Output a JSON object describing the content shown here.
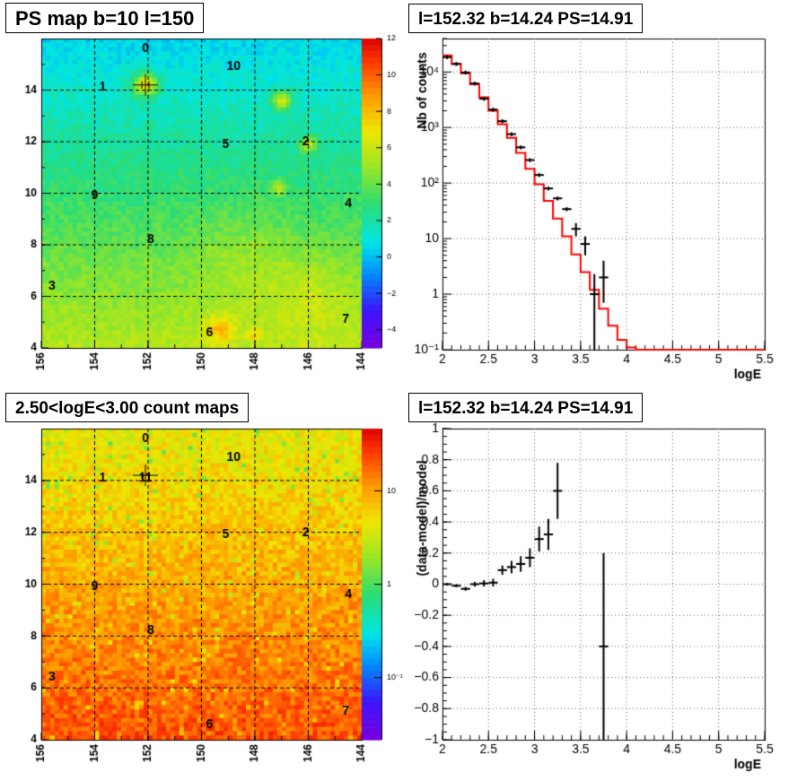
{
  "panels": {
    "ps_map": {
      "title": "PS map b=10 l=150",
      "colorbar_ticks": [
        "12",
        "10",
        "8",
        "6",
        "4",
        "2",
        "0",
        "−2",
        "−4"
      ],
      "colorbar_range": [
        -5,
        12
      ]
    },
    "count_map": {
      "title": "2.50<logE<3.00 count maps",
      "colorbar_ticks": [
        "10",
        "1",
        "10⁻¹"
      ]
    },
    "spectrum": {
      "title": "l=152.32 b=14.24 PS=14.91"
    },
    "residual": {
      "title": "l=152.32 b=14.24 PS=14.91"
    }
  },
  "map_axes": {
    "x_ticks": [
      "156",
      "154",
      "152",
      "150",
      "148",
      "146",
      "144"
    ],
    "x_range": [
      156,
      144
    ],
    "y_ticks": [
      "4",
      "6",
      "8",
      "10",
      "12",
      "14"
    ],
    "y_range": [
      4,
      16
    ]
  },
  "source_labels": [
    {
      "id": "0",
      "l": 152.1,
      "b": 15.6
    },
    {
      "id": "10",
      "l": 148.8,
      "b": 14.9
    },
    {
      "id": "1",
      "l": 153.7,
      "b": 14.1
    },
    {
      "id": "11",
      "l": 152.1,
      "b": 14.1
    },
    {
      "id": "5",
      "l": 149.1,
      "b": 11.9
    },
    {
      "id": "2",
      "l": 146.1,
      "b": 12.0
    },
    {
      "id": "9",
      "l": 154.0,
      "b": 9.9
    },
    {
      "id": "4",
      "l": 144.5,
      "b": 9.6
    },
    {
      "id": "8",
      "l": 151.9,
      "b": 8.2
    },
    {
      "id": "3",
      "l": 155.6,
      "b": 6.4
    },
    {
      "id": "7",
      "l": 144.6,
      "b": 5.1
    },
    {
      "id": "6",
      "l": 149.7,
      "b": 4.6
    }
  ],
  "map_marker": {
    "l": 152.1,
    "b": 14.2
  },
  "chart_data": [
    {
      "type": "line",
      "panel": "spectrum",
      "xlabel": "logE",
      "ylabel": "Nb of counts",
      "xlim": [
        2,
        5.5
      ],
      "ylim": [
        0.1,
        40000
      ],
      "log_y": true,
      "x_ticks": [
        "2",
        "2.5",
        "3",
        "3.5",
        "4",
        "4.5",
        "5",
        "5.5"
      ],
      "y_ticks": [
        {
          "value": 0.1,
          "label": "10⁻¹"
        },
        {
          "value": 1,
          "label": "1"
        },
        {
          "value": 10,
          "label": "10"
        },
        {
          "value": 100,
          "label": "10²"
        },
        {
          "value": 1000,
          "label": "10³"
        },
        {
          "value": 10000,
          "label": "10⁴"
        }
      ],
      "grid": true,
      "series": [
        {
          "kind": "histogram-step",
          "color": "#ff0000",
          "bin_edges": [
            2.0,
            2.1,
            2.2,
            2.3,
            2.4,
            2.5,
            2.6,
            2.7,
            2.8,
            2.9,
            3.0,
            3.1,
            3.2,
            3.3,
            3.4,
            3.5,
            3.6,
            3.7,
            3.8,
            3.9,
            4.0,
            4.1,
            4.2,
            4.3,
            4.4,
            4.5,
            4.6,
            4.7,
            4.8,
            4.9,
            5.0,
            5.1,
            5.2,
            5.3,
            5.4,
            5.5
          ],
          "values": [
            20000,
            14000,
            9500,
            6000,
            3500,
            2000,
            1150,
            650,
            350,
            180,
            95,
            48,
            23,
            11,
            5.2,
            2.5,
            1.2,
            0.55,
            0.27,
            0.15,
            0.11,
            0.1,
            0.1,
            0.1,
            0.1,
            0.1,
            0.1,
            0.1,
            0.1,
            0.1,
            0.1,
            0.1,
            0.1,
            0.1,
            0.1
          ]
        },
        {
          "kind": "points-with-errors",
          "color": "#000000",
          "points": [
            {
              "x": 2.05,
              "y": 18500
            },
            {
              "x": 2.15,
              "y": 14000
            },
            {
              "x": 2.25,
              "y": 9800
            },
            {
              "x": 2.35,
              "y": 6200
            },
            {
              "x": 2.45,
              "y": 3300
            },
            {
              "x": 2.55,
              "y": 2100
            },
            {
              "x": 2.65,
              "y": 1300
            },
            {
              "x": 2.75,
              "y": 760
            },
            {
              "x": 2.85,
              "y": 440
            },
            {
              "x": 2.95,
              "y": 260
            },
            {
              "x": 3.05,
              "y": 140
            },
            {
              "x": 3.15,
              "y": 80
            },
            {
              "x": 3.25,
              "y": 53
            },
            {
              "x": 3.35,
              "y": 34
            },
            {
              "x": 3.45,
              "y": 15,
              "ylo": 11,
              "yhi": 19
            },
            {
              "x": 3.55,
              "y": 8,
              "ylo": 5,
              "yhi": 11
            },
            {
              "x": 3.65,
              "y": 1,
              "ylo": 0.1,
              "yhi": 2.3
            },
            {
              "x": 3.75,
              "y": 2,
              "ylo": 0.7,
              "yhi": 4
            }
          ]
        }
      ]
    },
    {
      "type": "scatter",
      "panel": "residual",
      "xlabel": "logE",
      "ylabel": "(data-model)/model",
      "xlim": [
        2,
        5.5
      ],
      "ylim": [
        -1,
        1
      ],
      "x_ticks": [
        "2",
        "2.5",
        "3",
        "3.5",
        "4",
        "4.5",
        "5",
        "5.5"
      ],
      "y_ticks": [
        "1",
        "0.8",
        "0.6",
        "0.4",
        "0.2",
        "0",
        "−0.2",
        "−0.4",
        "−0.6",
        "−0.8",
        "−1"
      ],
      "grid": true,
      "points": [
        {
          "x": 2.05,
          "y": 0.0,
          "err": 0.008
        },
        {
          "x": 2.15,
          "y": -0.01,
          "err": 0.01
        },
        {
          "x": 2.25,
          "y": -0.03,
          "err": 0.012
        },
        {
          "x": 2.35,
          "y": 0.0,
          "err": 0.015
        },
        {
          "x": 2.45,
          "y": 0.005,
          "err": 0.02
        },
        {
          "x": 2.55,
          "y": 0.01,
          "err": 0.025
        },
        {
          "x": 2.65,
          "y": 0.09,
          "err": 0.03
        },
        {
          "x": 2.75,
          "y": 0.11,
          "err": 0.04
        },
        {
          "x": 2.85,
          "y": 0.13,
          "err": 0.05
        },
        {
          "x": 2.95,
          "y": 0.17,
          "err": 0.06
        },
        {
          "x": 3.05,
          "y": 0.29,
          "err": 0.08
        },
        {
          "x": 3.15,
          "y": 0.32,
          "err": 0.1
        },
        {
          "x": 3.25,
          "y": 0.6,
          "err": 0.18
        },
        {
          "x": 3.75,
          "y": -0.4,
          "err": 0.6
        }
      ]
    }
  ]
}
